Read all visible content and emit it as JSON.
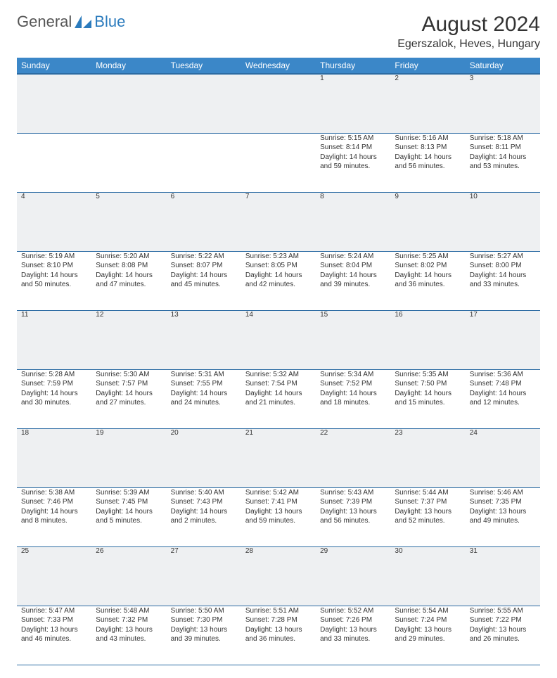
{
  "brand": {
    "part1": "General",
    "part2": "Blue"
  },
  "title": "August 2024",
  "location": "Egerszalok, Heves, Hungary",
  "colors": {
    "header_bg": "#3b87c8",
    "header_border": "#2b6ba3",
    "daynum_bg": "#eef0f2",
    "brand_blue": "#2b7bbd",
    "text": "#333333"
  },
  "weekdays": [
    "Sunday",
    "Monday",
    "Tuesday",
    "Wednesday",
    "Thursday",
    "Friday",
    "Saturday"
  ],
  "weeks": [
    {
      "nums": [
        "",
        "",
        "",
        "",
        "1",
        "2",
        "3"
      ],
      "cells": [
        null,
        null,
        null,
        null,
        {
          "sunrise": "5:15 AM",
          "sunset": "8:14 PM",
          "dl1": "Daylight: 14 hours",
          "dl2": "and 59 minutes."
        },
        {
          "sunrise": "5:16 AM",
          "sunset": "8:13 PM",
          "dl1": "Daylight: 14 hours",
          "dl2": "and 56 minutes."
        },
        {
          "sunrise": "5:18 AM",
          "sunset": "8:11 PM",
          "dl1": "Daylight: 14 hours",
          "dl2": "and 53 minutes."
        }
      ]
    },
    {
      "nums": [
        "4",
        "5",
        "6",
        "7",
        "8",
        "9",
        "10"
      ],
      "cells": [
        {
          "sunrise": "5:19 AM",
          "sunset": "8:10 PM",
          "dl1": "Daylight: 14 hours",
          "dl2": "and 50 minutes."
        },
        {
          "sunrise": "5:20 AM",
          "sunset": "8:08 PM",
          "dl1": "Daylight: 14 hours",
          "dl2": "and 47 minutes."
        },
        {
          "sunrise": "5:22 AM",
          "sunset": "8:07 PM",
          "dl1": "Daylight: 14 hours",
          "dl2": "and 45 minutes."
        },
        {
          "sunrise": "5:23 AM",
          "sunset": "8:05 PM",
          "dl1": "Daylight: 14 hours",
          "dl2": "and 42 minutes."
        },
        {
          "sunrise": "5:24 AM",
          "sunset": "8:04 PM",
          "dl1": "Daylight: 14 hours",
          "dl2": "and 39 minutes."
        },
        {
          "sunrise": "5:25 AM",
          "sunset": "8:02 PM",
          "dl1": "Daylight: 14 hours",
          "dl2": "and 36 minutes."
        },
        {
          "sunrise": "5:27 AM",
          "sunset": "8:00 PM",
          "dl1": "Daylight: 14 hours",
          "dl2": "and 33 minutes."
        }
      ]
    },
    {
      "nums": [
        "11",
        "12",
        "13",
        "14",
        "15",
        "16",
        "17"
      ],
      "cells": [
        {
          "sunrise": "5:28 AM",
          "sunset": "7:59 PM",
          "dl1": "Daylight: 14 hours",
          "dl2": "and 30 minutes."
        },
        {
          "sunrise": "5:30 AM",
          "sunset": "7:57 PM",
          "dl1": "Daylight: 14 hours",
          "dl2": "and 27 minutes."
        },
        {
          "sunrise": "5:31 AM",
          "sunset": "7:55 PM",
          "dl1": "Daylight: 14 hours",
          "dl2": "and 24 minutes."
        },
        {
          "sunrise": "5:32 AM",
          "sunset": "7:54 PM",
          "dl1": "Daylight: 14 hours",
          "dl2": "and 21 minutes."
        },
        {
          "sunrise": "5:34 AM",
          "sunset": "7:52 PM",
          "dl1": "Daylight: 14 hours",
          "dl2": "and 18 minutes."
        },
        {
          "sunrise": "5:35 AM",
          "sunset": "7:50 PM",
          "dl1": "Daylight: 14 hours",
          "dl2": "and 15 minutes."
        },
        {
          "sunrise": "5:36 AM",
          "sunset": "7:48 PM",
          "dl1": "Daylight: 14 hours",
          "dl2": "and 12 minutes."
        }
      ]
    },
    {
      "nums": [
        "18",
        "19",
        "20",
        "21",
        "22",
        "23",
        "24"
      ],
      "cells": [
        {
          "sunrise": "5:38 AM",
          "sunset": "7:46 PM",
          "dl1": "Daylight: 14 hours",
          "dl2": "and 8 minutes."
        },
        {
          "sunrise": "5:39 AM",
          "sunset": "7:45 PM",
          "dl1": "Daylight: 14 hours",
          "dl2": "and 5 minutes."
        },
        {
          "sunrise": "5:40 AM",
          "sunset": "7:43 PM",
          "dl1": "Daylight: 14 hours",
          "dl2": "and 2 minutes."
        },
        {
          "sunrise": "5:42 AM",
          "sunset": "7:41 PM",
          "dl1": "Daylight: 13 hours",
          "dl2": "and 59 minutes."
        },
        {
          "sunrise": "5:43 AM",
          "sunset": "7:39 PM",
          "dl1": "Daylight: 13 hours",
          "dl2": "and 56 minutes."
        },
        {
          "sunrise": "5:44 AM",
          "sunset": "7:37 PM",
          "dl1": "Daylight: 13 hours",
          "dl2": "and 52 minutes."
        },
        {
          "sunrise": "5:46 AM",
          "sunset": "7:35 PM",
          "dl1": "Daylight: 13 hours",
          "dl2": "and 49 minutes."
        }
      ]
    },
    {
      "nums": [
        "25",
        "26",
        "27",
        "28",
        "29",
        "30",
        "31"
      ],
      "cells": [
        {
          "sunrise": "5:47 AM",
          "sunset": "7:33 PM",
          "dl1": "Daylight: 13 hours",
          "dl2": "and 46 minutes."
        },
        {
          "sunrise": "5:48 AM",
          "sunset": "7:32 PM",
          "dl1": "Daylight: 13 hours",
          "dl2": "and 43 minutes."
        },
        {
          "sunrise": "5:50 AM",
          "sunset": "7:30 PM",
          "dl1": "Daylight: 13 hours",
          "dl2": "and 39 minutes."
        },
        {
          "sunrise": "5:51 AM",
          "sunset": "7:28 PM",
          "dl1": "Daylight: 13 hours",
          "dl2": "and 36 minutes."
        },
        {
          "sunrise": "5:52 AM",
          "sunset": "7:26 PM",
          "dl1": "Daylight: 13 hours",
          "dl2": "and 33 minutes."
        },
        {
          "sunrise": "5:54 AM",
          "sunset": "7:24 PM",
          "dl1": "Daylight: 13 hours",
          "dl2": "and 29 minutes."
        },
        {
          "sunrise": "5:55 AM",
          "sunset": "7:22 PM",
          "dl1": "Daylight: 13 hours",
          "dl2": "and 26 minutes."
        }
      ]
    }
  ]
}
